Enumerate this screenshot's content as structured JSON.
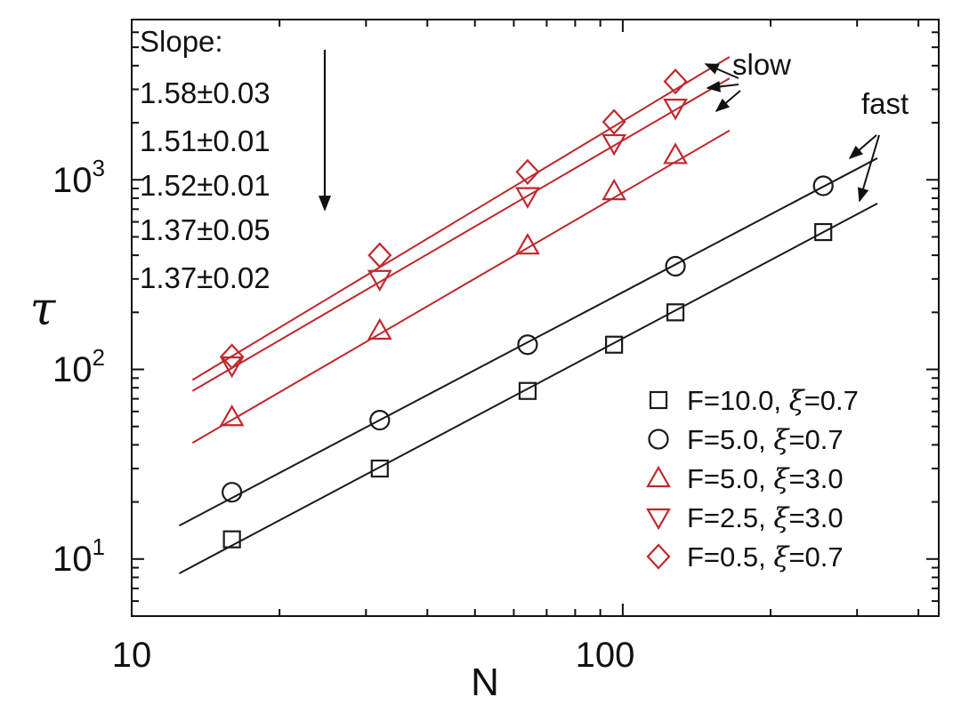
{
  "chart_data": {
    "type": "scatter",
    "x_scale": "log",
    "y_scale": "log",
    "xlim": [
      10,
      440
    ],
    "ylim": [
      5,
      7000
    ],
    "xlabel": "N",
    "ylabel": "τ",
    "x_ticks": [
      {
        "value": 10,
        "label": "10"
      },
      {
        "value": 100,
        "label": "100"
      }
    ],
    "y_ticks": [
      {
        "value": 10,
        "base": "10",
        "exp": "1"
      },
      {
        "value": 100,
        "base": "10",
        "exp": "2"
      },
      {
        "value": 1000,
        "base": "10",
        "exp": "3"
      }
    ],
    "grid": false,
    "legend_position": "bottom-right",
    "series": [
      {
        "label_prefix": "F=10.0, ",
        "xi_symbol": "ξ",
        "label_suffix": "=0.7",
        "marker": "square",
        "color": "#1a1a1a",
        "x": [
          16,
          32,
          64,
          96,
          128,
          256
        ],
        "y": [
          12.7,
          30,
          77,
          135,
          200,
          530
        ],
        "fit": {
          "x": [
            12.5,
            330
          ],
          "y": [
            8.4,
            750
          ]
        }
      },
      {
        "label_prefix": "F=5.0, ",
        "xi_symbol": "ξ",
        "label_suffix": "=0.7",
        "marker": "circle",
        "color": "#1a1a1a",
        "x": [
          16,
          32,
          64,
          128,
          256
        ],
        "y": [
          22.5,
          54,
          135,
          350,
          930
        ],
        "fit": {
          "x": [
            12.5,
            330
          ],
          "y": [
            15,
            1300
          ]
        }
      },
      {
        "label_prefix": "F=5.0, ",
        "xi_symbol": "ξ",
        "label_suffix": "=3.0",
        "marker": "triangle-up",
        "color": "#c0282d",
        "x": [
          16,
          32,
          64,
          96,
          128
        ],
        "y": [
          56,
          160,
          450,
          870,
          1350
        ],
        "fit": {
          "x": [
            13.3,
            165
          ],
          "y": [
            41,
            1820
          ]
        }
      },
      {
        "label_prefix": "F=2.5, ",
        "xi_symbol": "ξ",
        "label_suffix": "=3.0",
        "marker": "triangle-down",
        "color": "#c0282d",
        "x": [
          16,
          32,
          64,
          96,
          128
        ],
        "y": [
          105,
          300,
          820,
          1560,
          2400
        ],
        "fit": {
          "x": [
            13.3,
            165
          ],
          "y": [
            77,
            3430
          ]
        }
      },
      {
        "label_prefix": "F=0.5, ",
        "xi_symbol": "ξ",
        "label_suffix": "=0.7",
        "marker": "diamond",
        "color": "#c0282d",
        "x": [
          16,
          32,
          64,
          96,
          128
        ],
        "y": [
          117,
          400,
          1100,
          2020,
          3300
        ],
        "fit": {
          "x": [
            13.3,
            165
          ],
          "y": [
            88,
            4450
          ]
        }
      }
    ],
    "annotations": {
      "slope_title": "Slope:",
      "slopes": [
        "1.58±0.03",
        "1.51±0.01",
        "1.52±0.01",
        "1.37±0.05",
        "1.37±0.02"
      ],
      "slow_label": "slow",
      "fast_label": "fast"
    }
  }
}
